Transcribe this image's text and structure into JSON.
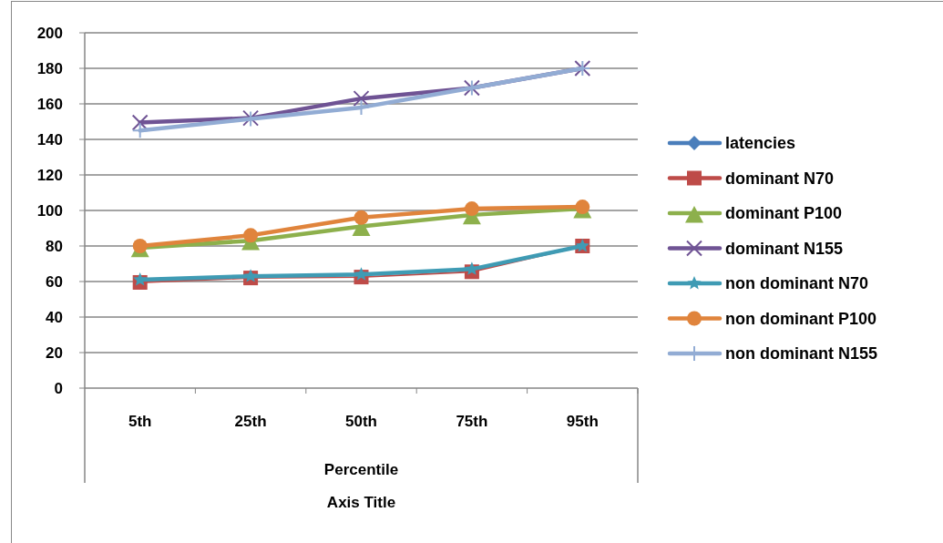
{
  "chart_data": {
    "type": "line",
    "categories": [
      "5th",
      "25th",
      "50th",
      "75th",
      "95th"
    ],
    "xlabel": "Axis Title",
    "annotations": [
      "Percentile"
    ],
    "ylim": [
      0,
      200
    ],
    "yticks": [
      0,
      20,
      40,
      60,
      80,
      100,
      120,
      140,
      160,
      180,
      200
    ],
    "grid": "y",
    "legend": "right",
    "series": [
      {
        "name": "latencies",
        "color": "#4a7ebb",
        "marker": "diamond",
        "values": [
          null,
          null,
          null,
          null,
          null
        ]
      },
      {
        "name": "dominant N70",
        "color": "#be4b48",
        "marker": "square",
        "values": [
          59.5,
          62,
          62.5,
          65.5,
          80
        ]
      },
      {
        "name": "dominant P100",
        "color": "#8db04c",
        "marker": "triangle",
        "values": [
          79,
          83,
          91,
          97.5,
          101
        ]
      },
      {
        "name": "dominant N155",
        "color": "#6f5394",
        "marker": "cross",
        "values": [
          149.5,
          152,
          163,
          169,
          180
        ]
      },
      {
        "name": "non dominant N70",
        "color": "#3f9bb4",
        "marker": "star",
        "values": [
          61,
          63,
          64,
          67,
          80
        ]
      },
      {
        "name": "non dominant P100",
        "color": "#e0843c",
        "marker": "circle",
        "values": [
          80,
          86,
          96,
          101,
          102
        ]
      },
      {
        "name": "non dominant N155",
        "color": "#92acd4",
        "marker": "plus",
        "values": [
          145,
          151.5,
          158,
          169,
          180
        ]
      }
    ]
  }
}
